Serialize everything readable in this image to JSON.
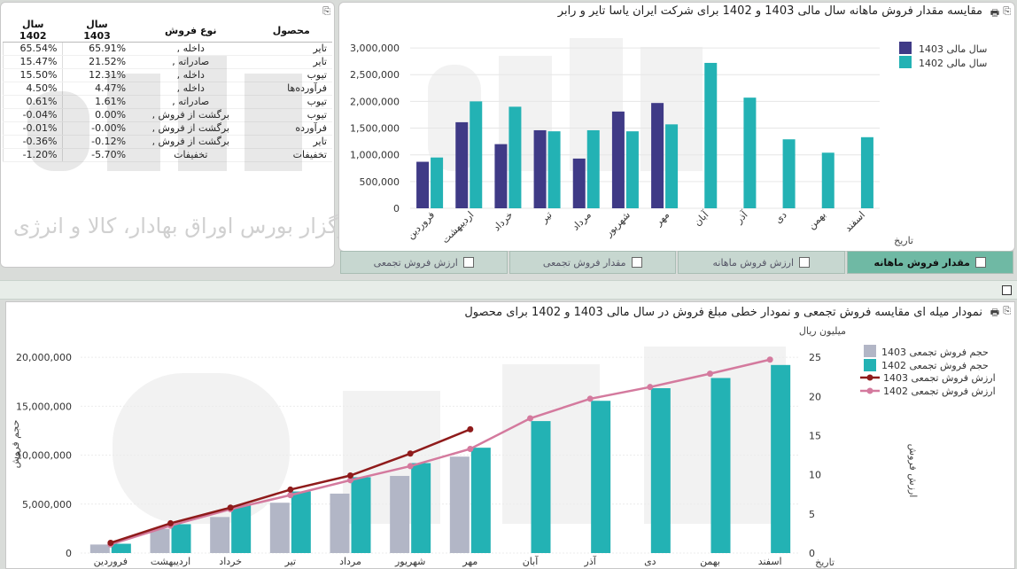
{
  "share_table": {
    "headers": {
      "product": "محصول",
      "sale_type": "نوع فروش",
      "col_1403": "سال\n1403",
      "col_1402": "سال\n1402"
    },
    "rows": [
      {
        "product": "تایر",
        "type": "داخله ,",
        "v1403": "65.91%",
        "v1402": "65.54%"
      },
      {
        "product": "تایر",
        "type": "صادراته ,",
        "v1403": "21.52%",
        "v1402": "15.47%"
      },
      {
        "product": "تیوب",
        "type": "داخله ,",
        "v1403": "12.31%",
        "v1402": "15.50%"
      },
      {
        "product": "فرآورده‌ها",
        "type": "داخله ,",
        "v1403": "4.47%",
        "v1402": "4.50%"
      },
      {
        "product": "تیوب",
        "type": "صادراته ,",
        "v1403": "1.61%",
        "v1402": "0.61%"
      },
      {
        "product": "تیوب",
        "type": "برگشت از فروش ,",
        "v1403": "0.00%",
        "v1402": "-0.04%"
      },
      {
        "product": "فرآورده",
        "type": "برگشت از فروش ,",
        "v1403": "-0.00%",
        "v1402": "-0.01%"
      },
      {
        "product": "تایر",
        "type": "برگشت از فروش ,",
        "v1403": "-0.12%",
        "v1402": "-0.36%"
      },
      {
        "product": "تخفیفات",
        "type": "تخفیفات",
        "v1403": "-5.70%",
        "v1402": "-1.20%"
      }
    ]
  },
  "tabs": [
    {
      "label": "مقدار فروش ماهانه",
      "active": true
    },
    {
      "label": "ارزش فروش ماهانه",
      "active": false
    },
    {
      "label": "مقدار فروش تجمعی",
      "active": false
    },
    {
      "label": "ارزش فروش تجمعی",
      "active": false
    }
  ],
  "watermark": {
    "logo": "آگاه",
    "text": "کارگزار بورس اوراق بهادار، کالا و انرژی"
  },
  "colors": {
    "y1403": "#3f3a86",
    "y1402": "#23b2b4",
    "gray1403": "#b2b6c6",
    "line1403": "#8f1b1b",
    "line1402": "#d47a9e"
  },
  "chart_data": [
    {
      "type": "bar",
      "title": "مقایسه مقدار فروش ماهانه سال مالی 1403 و 1402 برای شرکت ایران یاسا تایر و رابر",
      "xlabel": "تاریخ",
      "ylabel": "",
      "ylim": [
        0,
        3250000
      ],
      "yticks": [
        "0",
        "500,000",
        "1,000,000",
        "1,500,000",
        "2,000,000",
        "2,500,000",
        "3,000,000"
      ],
      "ytick_values": [
        0,
        500000,
        1000000,
        1500000,
        2000000,
        2500000,
        3000000
      ],
      "categories": [
        "فروردین",
        "اردیبهشت",
        "خرداد",
        "تیر",
        "مرداد",
        "شهریور",
        "مهر",
        "آبان",
        "آذر",
        "دی",
        "بهمن",
        "اسفند"
      ],
      "series": [
        {
          "name": "سال مالی 1403",
          "values": [
            870000,
            1610000,
            1200000,
            1460000,
            930000,
            1810000,
            1970000,
            null,
            null,
            null,
            null,
            null
          ]
        },
        {
          "name": "سال مالی 1402",
          "values": [
            950000,
            2000000,
            1900000,
            1440000,
            1460000,
            1440000,
            1570000,
            2720000,
            2070000,
            1290000,
            1040000,
            1330000
          ]
        }
      ],
      "legend": "top-right"
    },
    {
      "type": "bar",
      "title": "نمودار میله ای مقایسه فروش تجمعی و نمودار خطی مبلغ فروش در سال مالی 1403 و 1402 برای محصول",
      "xlabel": "تاریخ",
      "ylabel": "حجم فروش",
      "y2label": "ارزش فروش",
      "y2unit": "میلیون ریال",
      "ylim": [
        0,
        22000000
      ],
      "yticks": [
        "0",
        "5,000,000",
        "10,000,000",
        "15,000,000",
        "20,000,000"
      ],
      "ytick_values": [
        0,
        5000000,
        10000000,
        15000000,
        20000000
      ],
      "y2lim": [
        0,
        27.5
      ],
      "y2ticks": [
        "0",
        "5",
        "10",
        "15",
        "20",
        "25"
      ],
      "y2tick_values": [
        0,
        5,
        10,
        15,
        20,
        25
      ],
      "categories": [
        "فروردین",
        "اردیبهشت",
        "خرداد",
        "تیر",
        "مرداد",
        "شهریور",
        "مهر",
        "آبان",
        "آذر",
        "دی",
        "بهمن",
        "اسفند"
      ],
      "series": [
        {
          "name": "حجم فروش تجمعی 1403",
          "kind": "bar",
          "values": [
            870000,
            2480000,
            3680000,
            5140000,
            6070000,
            7880000,
            9850000,
            null,
            null,
            null,
            null,
            null
          ]
        },
        {
          "name": "حجم فروش تجمعی 1402",
          "kind": "bar",
          "values": [
            950000,
            2950000,
            4850000,
            6290000,
            7750000,
            9190000,
            10760000,
            13480000,
            15550000,
            16840000,
            17880000,
            19210000
          ]
        },
        {
          "name": "ارزش فروش تجمعی 1403",
          "kind": "line",
          "axis": "y2",
          "values": [
            1.3,
            3.8,
            5.8,
            8.1,
            9.9,
            12.7,
            15.8,
            null,
            null,
            null,
            null,
            null
          ]
        },
        {
          "name": "ارزش فروش تجمعی 1402",
          "kind": "line",
          "axis": "y2",
          "values": [
            1.1,
            3.5,
            5.6,
            7.4,
            9.3,
            11.1,
            13.3,
            17.2,
            19.7,
            21.2,
            22.9,
            24.7
          ]
        }
      ],
      "legend": "top-right"
    }
  ]
}
